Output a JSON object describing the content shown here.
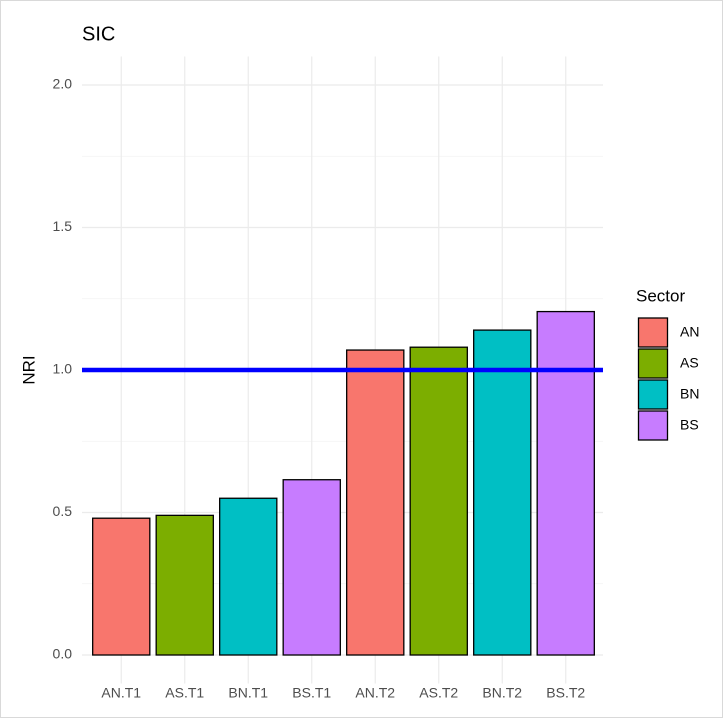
{
  "chart_data": {
    "type": "bar",
    "title": "SIC",
    "y_label": "NRI",
    "categories": [
      "AN.T1",
      "AS.T1",
      "BN.T1",
      "BS.T1",
      "AN.T2",
      "AS.T2",
      "BN.T2",
      "BS.T2"
    ],
    "values": [
      0.48,
      0.49,
      0.55,
      0.615,
      1.07,
      1.08,
      1.14,
      1.205
    ],
    "colors": [
      "#F8766D",
      "#7CAE00",
      "#00BFC4",
      "#C77CFF",
      "#F8766D",
      "#7CAE00",
      "#00BFC4",
      "#C77CFF"
    ],
    "ylim": [
      -0.1,
      2.1
    ],
    "yticks": [
      {
        "value": 0,
        "label": "0.0"
      },
      0.5,
      {
        "value": 1,
        "label": "1.0"
      },
      1.5,
      {
        "value": 2,
        "label": "2.0"
      }
    ],
    "minor_grid_y": [
      0.25,
      0.75,
      1.25,
      1.75
    ],
    "grid": true,
    "hline": {
      "value": 1,
      "color": "#0000FF"
    },
    "legend": {
      "title": "Sector",
      "position": "right",
      "items": [
        {
          "name": "AN",
          "color": "#F8766D"
        },
        {
          "name": "AS",
          "color": "#7CAE00"
        },
        {
          "name": "BN",
          "color": "#00BFC4"
        },
        {
          "name": "BS",
          "color": "#C77CFF"
        }
      ]
    }
  }
}
